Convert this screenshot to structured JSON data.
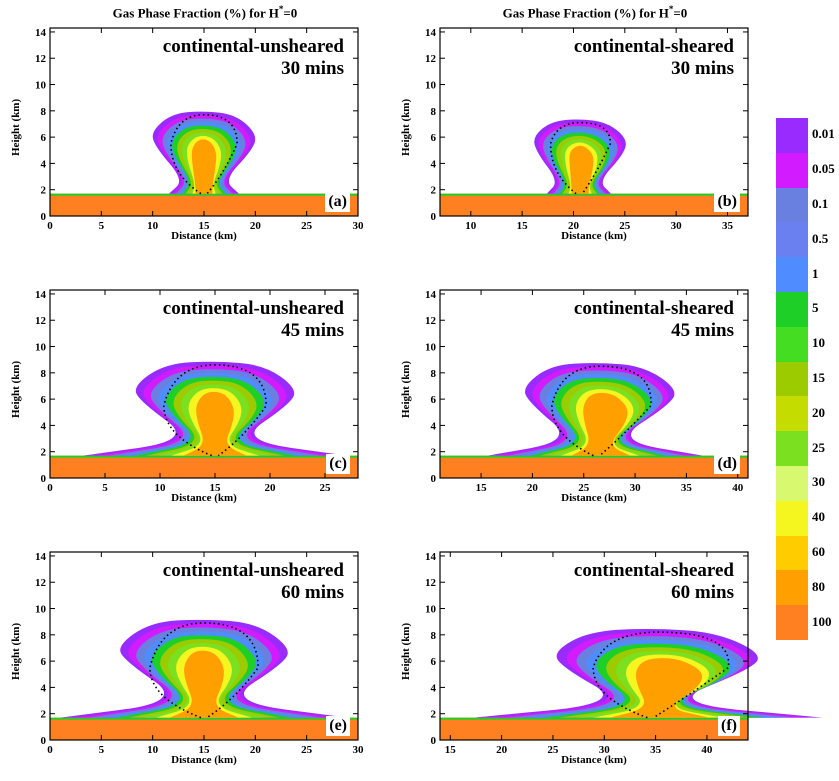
{
  "column_titles": [
    {
      "text": "Gas Phase Fraction (%) for H",
      "sup": "*",
      "tail": "=0"
    },
    {
      "text": "Gas Phase Fraction (%) for H",
      "sup": "*",
      "tail": "=0"
    }
  ],
  "colorbar": {
    "labels": [
      "0.01",
      "0.05",
      "0.1",
      "0.5",
      "1",
      "5",
      "10",
      "15",
      "20",
      "25",
      "30",
      "40",
      "60",
      "80",
      "100"
    ],
    "colors": [
      "#9a2bff",
      "#d21bff",
      "#6a80e0",
      "#6a80f0",
      "#4f8cff",
      "#1ecf28",
      "#44dd22",
      "#9ccc00",
      "#c4dc00",
      "#7be020",
      "#d8f870",
      "#f5f520",
      "#ffcc00",
      "#ffa000",
      "#ff8020"
    ]
  },
  "chart_data": [
    {
      "type": "heatmap",
      "panel": "(a)",
      "case": "continental-unsheared",
      "time": "30 mins",
      "xlabel": "Distance (km)",
      "ylabel": "Height (km)",
      "xlim": [
        0,
        30
      ],
      "ylim": [
        0,
        14.3
      ],
      "xticks": [
        0,
        5,
        10,
        15,
        20,
        25,
        30
      ],
      "yticks": [
        0,
        2,
        4,
        6,
        8,
        10,
        12,
        14
      ],
      "cloud": {
        "center": 15,
        "width_top": 5.2,
        "width_base": 3.4,
        "top": 8.0,
        "shear": 0
      }
    },
    {
      "type": "heatmap",
      "panel": "(b)",
      "case": "continental-sheared",
      "time": "30 mins",
      "xlabel": "Distance (km)",
      "ylabel": "Height (km)",
      "xlim": [
        7,
        37
      ],
      "ylim": [
        0,
        14.3
      ],
      "xticks": [
        10,
        15,
        20,
        25,
        30,
        35
      ],
      "yticks": [
        0,
        2,
        4,
        6,
        8,
        10,
        12,
        14
      ],
      "cloud": {
        "center": 20.5,
        "width_top": 4.5,
        "width_base": 3.0,
        "top": 7.4,
        "shear": 0.3
      }
    },
    {
      "type": "heatmap",
      "panel": "(c)",
      "case": "continental-unsheared",
      "time": "45 mins",
      "xlabel": "Distance (km)",
      "ylabel": "Height (km)",
      "xlim": [
        0,
        28
      ],
      "ylim": [
        0,
        14.3
      ],
      "xticks": [
        0,
        5,
        10,
        15,
        20,
        25
      ],
      "yticks": [
        0,
        2,
        4,
        6,
        8,
        10,
        12,
        14
      ],
      "cloud": {
        "center": 15,
        "width_top": 7.5,
        "width_base": 12,
        "top": 8.9,
        "shear": 0
      }
    },
    {
      "type": "heatmap",
      "panel": "(d)",
      "case": "continental-sheared",
      "time": "45 mins",
      "xlabel": "Distance (km)",
      "ylabel": "Height (km)",
      "xlim": [
        11,
        41
      ],
      "ylim": [
        0,
        14.3
      ],
      "xticks": [
        15,
        20,
        25,
        30,
        35,
        40
      ],
      "yticks": [
        0,
        2,
        4,
        6,
        8,
        10,
        12,
        14
      ],
      "cloud": {
        "center": 26,
        "width_top": 7,
        "width_base": 10,
        "top": 8.8,
        "shear": 1.2
      }
    },
    {
      "type": "heatmap",
      "panel": "(e)",
      "case": "continental-unsheared",
      "time": "60 mins",
      "xlabel": "Distance (km)",
      "ylabel": "Height (km)",
      "xlim": [
        0,
        30
      ],
      "ylim": [
        0,
        14.3
      ],
      "xticks": [
        0,
        5,
        10,
        15,
        20,
        25,
        30
      ],
      "yticks": [
        0,
        2,
        4,
        6,
        8,
        10,
        12,
        14
      ],
      "cloud": {
        "center": 15,
        "width_top": 8.5,
        "width_base": 14,
        "top": 9.2,
        "shear": 0
      }
    },
    {
      "type": "heatmap",
      "panel": "(f)",
      "case": "continental-sheared",
      "time": "60 mins",
      "xlabel": "Distance (km)",
      "ylabel": "Height (km)",
      "xlim": [
        14,
        44
      ],
      "ylim": [
        0,
        14.3
      ],
      "xticks": [
        15,
        20,
        25,
        30,
        35,
        40
      ],
      "yticks": [
        0,
        2,
        4,
        6,
        8,
        10,
        12,
        14
      ],
      "cloud": {
        "center": 34,
        "width_top": 9,
        "width_base": 16,
        "top": 8.5,
        "shear": 2.5
      }
    }
  ]
}
